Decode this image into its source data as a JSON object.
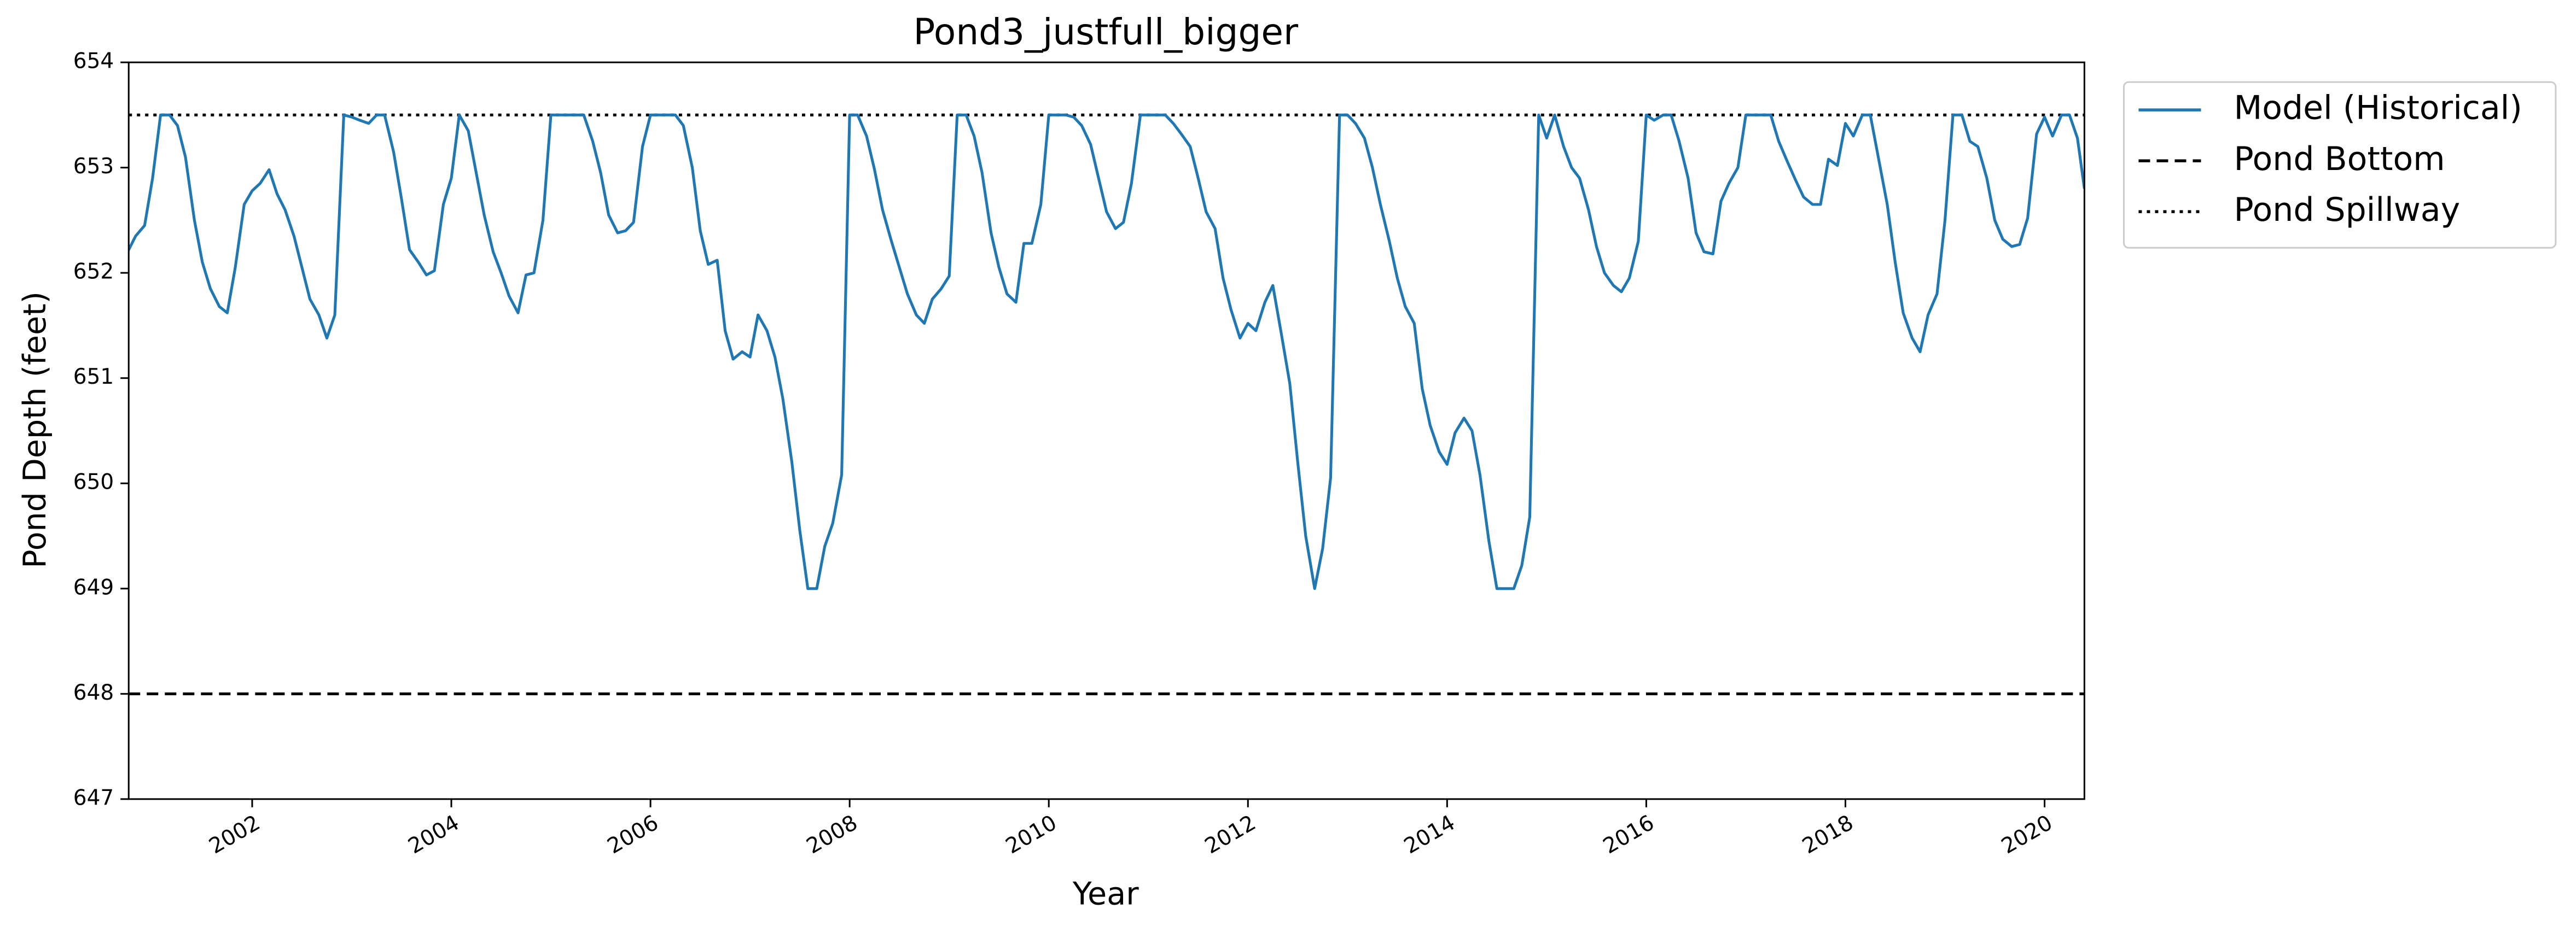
{
  "chart_data": {
    "type": "line",
    "title": "Pond3_justfull_bigger",
    "x_label": "Year",
    "y_label": "Pond Depth (feet)",
    "xlim": [
      2000.76,
      2020.4
    ],
    "xticks": [
      2002,
      2004,
      2006,
      2008,
      2010,
      2012,
      2014,
      2016,
      2018,
      2020
    ],
    "ylim": [
      647,
      654
    ],
    "yticks": [
      647,
      648,
      649,
      650,
      651,
      652,
      653,
      654
    ],
    "grid": false,
    "legend": "outside-right",
    "x": [
      2000.75,
      2000.83,
      2000.92,
      2001.0,
      2001.08,
      2001.17,
      2001.25,
      2001.33,
      2001.42,
      2001.5,
      2001.58,
      2001.67,
      2001.75,
      2001.83,
      2001.92,
      2002.0,
      2002.08,
      2002.17,
      2002.25,
      2002.33,
      2002.42,
      2002.5,
      2002.58,
      2002.67,
      2002.75,
      2002.83,
      2002.92,
      2003.0,
      2003.08,
      2003.17,
      2003.25,
      2003.33,
      2003.42,
      2003.5,
      2003.58,
      2003.67,
      2003.75,
      2003.83,
      2003.92,
      2004.0,
      2004.08,
      2004.17,
      2004.25,
      2004.33,
      2004.42,
      2004.5,
      2004.58,
      2004.67,
      2004.75,
      2004.83,
      2004.92,
      2005.0,
      2005.08,
      2005.17,
      2005.25,
      2005.33,
      2005.42,
      2005.5,
      2005.58,
      2005.67,
      2005.75,
      2005.83,
      2005.92,
      2006.0,
      2006.08,
      2006.17,
      2006.25,
      2006.33,
      2006.42,
      2006.5,
      2006.58,
      2006.67,
      2006.75,
      2006.83,
      2006.92,
      2007.0,
      2007.08,
      2007.17,
      2007.25,
      2007.33,
      2007.42,
      2007.5,
      2007.58,
      2007.67,
      2007.75,
      2007.83,
      2007.92,
      2008.0,
      2008.08,
      2008.17,
      2008.25,
      2008.33,
      2008.42,
      2008.5,
      2008.58,
      2008.67,
      2008.75,
      2008.83,
      2008.92,
      2009.0,
      2009.08,
      2009.17,
      2009.25,
      2009.33,
      2009.42,
      2009.5,
      2009.58,
      2009.67,
      2009.75,
      2009.83,
      2009.92,
      2010.0,
      2010.08,
      2010.17,
      2010.25,
      2010.33,
      2010.42,
      2010.5,
      2010.58,
      2010.67,
      2010.75,
      2010.83,
      2010.92,
      2011.0,
      2011.08,
      2011.17,
      2011.25,
      2011.33,
      2011.42,
      2011.5,
      2011.58,
      2011.67,
      2011.75,
      2011.83,
      2011.92,
      2012.0,
      2012.08,
      2012.17,
      2012.25,
      2012.33,
      2012.42,
      2012.5,
      2012.58,
      2012.67,
      2012.75,
      2012.83,
      2012.92,
      2013.0,
      2013.08,
      2013.17,
      2013.25,
      2013.33,
      2013.42,
      2013.5,
      2013.58,
      2013.67,
      2013.75,
      2013.83,
      2013.92,
      2014.0,
      2014.08,
      2014.17,
      2014.25,
      2014.33,
      2014.42,
      2014.5,
      2014.58,
      2014.67,
      2014.75,
      2014.83,
      2014.92,
      2015.0,
      2015.08,
      2015.17,
      2015.25,
      2015.33,
      2015.42,
      2015.5,
      2015.58,
      2015.67,
      2015.75,
      2015.83,
      2015.92,
      2016.0,
      2016.08,
      2016.17,
      2016.25,
      2016.33,
      2016.42,
      2016.5,
      2016.58,
      2016.67,
      2016.75,
      2016.83,
      2016.92,
      2017.0,
      2017.08,
      2017.17,
      2017.25,
      2017.33,
      2017.42,
      2017.5,
      2017.58,
      2017.67,
      2017.75,
      2017.83,
      2017.92,
      2018.0,
      2018.08,
      2018.17,
      2018.25,
      2018.33,
      2018.42,
      2018.5,
      2018.58,
      2018.67,
      2018.75,
      2018.83,
      2018.92,
      2019.0,
      2019.08,
      2019.17,
      2019.25,
      2019.33,
      2019.42,
      2019.5,
      2019.58,
      2019.67,
      2019.75,
      2019.83,
      2019.92,
      2020.0,
      2020.08,
      2020.17,
      2020.25,
      2020.33,
      2020.4
    ],
    "series": [
      {
        "name": "Model (Historical)",
        "color": "#1f77b4",
        "values": [
          652.2,
          652.35,
          652.45,
          652.9,
          653.5,
          653.5,
          653.4,
          653.1,
          652.5,
          652.1,
          651.85,
          651.68,
          651.62,
          652.05,
          652.65,
          652.78,
          652.85,
          652.98,
          652.75,
          652.6,
          652.35,
          652.05,
          651.75,
          651.6,
          651.38,
          651.6,
          653.5,
          653.48,
          653.45,
          653.42,
          653.5,
          653.5,
          653.15,
          652.7,
          652.22,
          652.1,
          651.98,
          652.02,
          652.65,
          652.9,
          653.5,
          653.35,
          652.95,
          652.55,
          652.2,
          652.0,
          651.78,
          651.62,
          651.98,
          652.0,
          652.5,
          653.5,
          653.5,
          653.5,
          653.5,
          653.5,
          653.25,
          652.95,
          652.55,
          652.38,
          652.4,
          652.48,
          653.2,
          653.5,
          653.5,
          653.5,
          653.5,
          653.4,
          653.0,
          652.4,
          652.08,
          652.12,
          651.45,
          651.18,
          651.25,
          651.2,
          651.6,
          651.45,
          651.2,
          650.8,
          650.2,
          649.55,
          649.0,
          649.0,
          649.4,
          649.62,
          650.08,
          653.5,
          653.5,
          653.3,
          652.98,
          652.6,
          652.3,
          652.05,
          651.8,
          651.6,
          651.52,
          651.75,
          651.85,
          651.97,
          653.5,
          653.5,
          653.3,
          652.95,
          652.38,
          652.05,
          651.8,
          651.72,
          652.28,
          652.28,
          652.65,
          653.5,
          653.5,
          653.5,
          653.48,
          653.4,
          653.22,
          652.9,
          652.58,
          652.42,
          652.48,
          652.85,
          653.5,
          653.5,
          653.5,
          653.5,
          653.42,
          653.32,
          653.2,
          652.9,
          652.58,
          652.42,
          651.95,
          651.65,
          651.38,
          651.52,
          651.45,
          651.72,
          651.88,
          651.45,
          650.95,
          650.2,
          649.5,
          649.0,
          649.38,
          650.05,
          653.5,
          653.5,
          653.42,
          653.28,
          653.0,
          652.65,
          652.3,
          651.95,
          651.68,
          651.52,
          650.9,
          650.55,
          650.3,
          650.18,
          650.48,
          650.62,
          650.5,
          650.08,
          649.45,
          649.0,
          649.0,
          649.0,
          649.22,
          649.68,
          653.5,
          653.28,
          653.5,
          653.2,
          653.0,
          652.9,
          652.6,
          652.25,
          652.0,
          651.88,
          651.82,
          651.95,
          652.3,
          653.5,
          653.45,
          653.5,
          653.5,
          653.25,
          652.9,
          652.38,
          652.2,
          652.18,
          652.68,
          652.85,
          653.0,
          653.5,
          653.5,
          653.5,
          653.5,
          653.25,
          653.05,
          652.88,
          652.72,
          652.65,
          652.65,
          653.08,
          653.02,
          653.42,
          653.3,
          653.5,
          653.5,
          653.1,
          652.65,
          652.1,
          651.62,
          651.38,
          651.25,
          651.6,
          651.8,
          652.5,
          653.5,
          653.5,
          653.25,
          653.2,
          652.9,
          652.5,
          652.32,
          652.25,
          652.27,
          652.52,
          653.32,
          653.48,
          653.3,
          653.5,
          653.5,
          653.28,
          652.8
        ]
      }
    ],
    "reference_lines": [
      {
        "name": "Pond Bottom",
        "value": 648,
        "color": "#000000",
        "style": "dashed"
      },
      {
        "name": "Pond Spillway",
        "value": 653.5,
        "color": "#000000",
        "style": "dotted"
      }
    ]
  }
}
